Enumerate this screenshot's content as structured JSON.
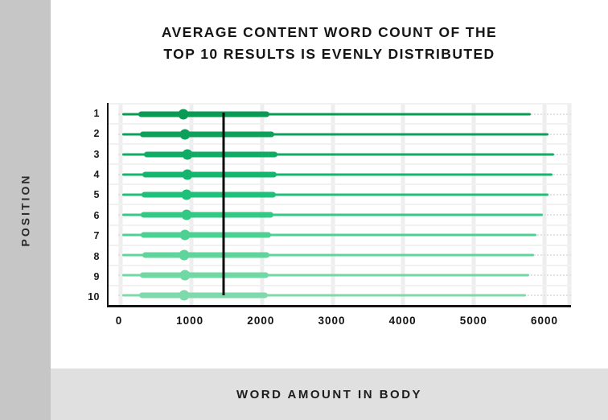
{
  "title": {
    "line1": "AVERAGE CONTENT WORD COUNT OF THE",
    "line2": "TOP 10 RESULTS IS EVENLY DISTRIBUTED"
  },
  "axis_labels": {
    "y": "POSITION",
    "x": "WORD AMOUNT IN BODY"
  },
  "colors": {
    "left_strip": "#c6c6c6",
    "bottom_strip": "#e0e0e0",
    "axis": "#141414",
    "average_line": "#0c0c0c",
    "gridline": "#eeeeee"
  },
  "chart_data": {
    "type": "boxplot",
    "orientation": "horizontal",
    "title": "AVERAGE CONTENT WORD COUNT OF THE TOP 10 RESULTS IS EVENLY DISTRIBUTED",
    "xlabel": "WORD AMOUNT IN BODY",
    "ylabel": "POSITION",
    "grid": true,
    "x_ticks": [
      0,
      1000,
      2000,
      3000,
      4000,
      5000,
      6000
    ],
    "xlim": [
      0,
      6370
    ],
    "average_line": {
      "value": 1460,
      "color": "#0c0c0c"
    },
    "categories": [
      "1",
      "2",
      "3",
      "4",
      "5",
      "6",
      "7",
      "8",
      "9",
      "10"
    ],
    "series": [
      {
        "position": "1",
        "min": 20,
        "q1": 250,
        "mean": 885,
        "q3": 2110,
        "max": 5800,
        "color": "#0b9a54"
      },
      {
        "position": "2",
        "min": 20,
        "q1": 270,
        "mean": 915,
        "q3": 2175,
        "max": 6060,
        "color": "#0da05b"
      },
      {
        "position": "3",
        "min": 20,
        "q1": 325,
        "mean": 940,
        "q3": 2220,
        "max": 6140,
        "color": "#10ab64"
      },
      {
        "position": "4",
        "min": 20,
        "q1": 305,
        "mean": 940,
        "q3": 2210,
        "max": 6110,
        "color": "#14b56e"
      },
      {
        "position": "5",
        "min": 20,
        "q1": 295,
        "mean": 930,
        "q3": 2195,
        "max": 6055,
        "color": "#1fc079"
      },
      {
        "position": "6",
        "min": 20,
        "q1": 285,
        "mean": 930,
        "q3": 2165,
        "max": 5975,
        "color": "#33c985"
      },
      {
        "position": "7",
        "min": 20,
        "q1": 285,
        "mean": 915,
        "q3": 2130,
        "max": 5885,
        "color": "#4cd193"
      },
      {
        "position": "8",
        "min": 20,
        "q1": 305,
        "mean": 905,
        "q3": 2110,
        "max": 5850,
        "color": "#5fd59c"
      },
      {
        "position": "9",
        "min": 20,
        "q1": 270,
        "mean": 915,
        "q3": 2095,
        "max": 5780,
        "color": "#6fd8a4"
      },
      {
        "position": "10",
        "min": 20,
        "q1": 260,
        "mean": 895,
        "q3": 2085,
        "max": 5740,
        "color": "#7edaab"
      }
    ]
  }
}
